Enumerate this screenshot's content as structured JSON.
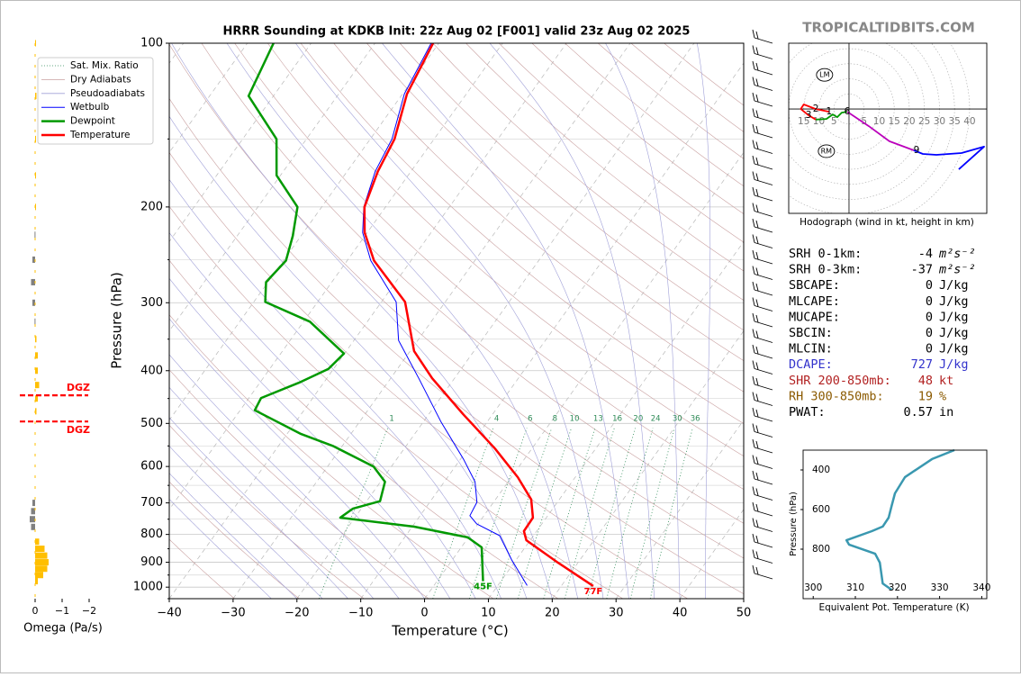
{
  "header": {
    "brand": "TROPICALTIDBITS.COM"
  },
  "chart_data": [
    {
      "type": "skewt",
      "title": "HRRR Sounding at KDKB Init: 22z Aug 02 [F001] valid 23z Aug 02 2025",
      "x_label": "Temperature (°C)",
      "y_label": "Pressure (hPa)",
      "xlim": [
        -40,
        50
      ],
      "ylim": [
        1050,
        100
      ],
      "log_y": true,
      "xticks": [
        {
          "value": -40,
          "label": "−40"
        },
        {
          "value": -30,
          "label": "−30"
        },
        {
          "value": -20,
          "label": "−20"
        },
        {
          "value": -10,
          "label": "−10"
        },
        0,
        10,
        20,
        30,
        40,
        50
      ],
      "yticks": [
        100,
        200,
        300,
        400,
        500,
        600,
        700,
        800,
        900,
        1000
      ],
      "minor_yticks": [
        150,
        250,
        350,
        450,
        550,
        650,
        750,
        850,
        950,
        1050
      ],
      "mixing_ratio_labels": [
        1,
        4,
        6,
        8,
        10,
        13,
        16,
        20,
        24,
        30,
        36
      ],
      "reference_lines": [
        {
          "name": "Sat. Mix. Ratio",
          "color": "#2e8b57",
          "style": "dotted"
        },
        {
          "name": "Dry Adiabats",
          "color": "#c9a0a0",
          "style": "solid"
        },
        {
          "name": "Pseudoadiabats",
          "color": "#a0a0d8",
          "style": "solid"
        }
      ],
      "series": [
        {
          "name": "Wetbulb",
          "color": "#0000ff",
          "width": 1,
          "pressure": [
            993,
            891,
            804,
            765,
            739,
            698,
            640,
            582,
            496,
            413,
            352,
            299,
            251,
            223,
            200,
            172,
            150,
            124,
            100
          ],
          "values": [
            14.6,
            9.3,
            4.7,
            -0.2,
            -2.2,
            -2.6,
            -5.2,
            -9.5,
            -17.3,
            -25.6,
            -33,
            -37.7,
            -46.3,
            -50.7,
            -53.4,
            -55.6,
            -56.6,
            -59.7,
            -61.2
          ]
        },
        {
          "name": "Dewpoint",
          "color": "#009900",
          "width": 2.5,
          "surface_label": "45F",
          "pressure": [
            975,
            845,
            810,
            774,
            745,
            717,
            695,
            640,
            600,
            550,
            523,
            473,
            449,
            421,
            397,
            372,
            325,
            299,
            275,
            251,
            226,
            200,
            175,
            150,
            125,
            100
          ],
          "values": [
            7.2,
            3.2,
            -0.1,
            -9.7,
            -22.3,
            -21.3,
            -17.9,
            -19.3,
            -22.8,
            -31.5,
            -37.8,
            -47.7,
            -48.1,
            -43.9,
            -40.8,
            -40.1,
            -49.0,
            -58.2,
            -60.3,
            -59.6,
            -61.3,
            -63.8,
            -70.6,
            -74.7,
            -83.9,
            -85.9
          ]
        },
        {
          "name": "Temperature",
          "color": "#ff0000",
          "width": 2.5,
          "surface_label": "77F",
          "pressure": [
            995,
            902,
            820,
            789,
            745,
            690,
            628,
            556,
            481,
            413,
            368,
            299,
            251,
            223,
            200,
            172,
            150,
            124,
            100
          ],
          "values": [
            25,
            16.9,
            9.4,
            8.0,
            7.9,
            5.6,
            1.0,
            -5.8,
            -14.6,
            -23.5,
            -29.4,
            -36.3,
            -45.8,
            -50.4,
            -53.3,
            -55.2,
            -56.2,
            -59.3,
            -60.9
          ]
        }
      ]
    },
    {
      "type": "omega",
      "x_label": "Omega (Pa/s)",
      "xlim": [
        0.5,
        -2.1
      ],
      "ylim": [
        1050,
        100
      ],
      "xticks": [
        0,
        {
          "value": -1,
          "label": "−1"
        },
        {
          "value": -2,
          "label": "−2"
        }
      ],
      "color_negative": "#ffbf00",
      "color_positive": "#808080",
      "pressure": [
        975,
        950,
        925,
        900,
        875,
        850,
        825,
        775,
        750,
        725,
        700,
        475,
        450,
        425,
        400,
        375,
        350,
        325,
        300,
        275,
        250,
        225,
        200,
        175,
        150,
        125,
        100
      ],
      "values": [
        -0.1,
        -0.3,
        -0.45,
        -0.5,
        -0.45,
        -0.35,
        -0.15,
        0.15,
        0.2,
        0.15,
        0.1,
        -0.05,
        -0.1,
        -0.15,
        -0.1,
        -0.1,
        -0.05,
        0.02,
        0.1,
        0.15,
        0.1,
        0.02,
        -0.03,
        -0.03,
        -0.03,
        -0.05,
        -0.02
      ],
      "dgz": {
        "pressures": [
          444,
          496
        ],
        "labels": [
          "DGZ",
          "DGZ"
        ],
        "color": "#ff0000"
      }
    },
    {
      "type": "hodograph",
      "caption": "Hodograph (wind in kt, height in km)",
      "xlim": [
        -20,
        45.7
      ],
      "ylim": [
        -34.6,
        21.8
      ],
      "xticks": [
        {
          "value": -15,
          "label": "15"
        },
        {
          "value": -10,
          "label": "10"
        },
        {
          "value": -5,
          "label": "5"
        },
        5,
        10,
        15,
        20,
        25,
        30,
        35,
        40
      ],
      "segments": [
        {
          "color": "#ff0000",
          "u": [
            -6.6,
            -11,
            -15,
            -16,
            -13.4,
            -11
          ],
          "v": [
            -0.9,
            0,
            1.5,
            0,
            -2.1,
            -3.5
          ]
        },
        {
          "color": "#009900",
          "u": [
            -11,
            -7.5,
            -5.4,
            -3.9,
            -2.4,
            -0.6
          ],
          "v": [
            -3.5,
            -3.3,
            -1.8,
            -2.7,
            -1.2,
            -0.9
          ]
        },
        {
          "color": "#bb00bb",
          "u": [
            -0.6,
            6.6,
            13.4,
            21.5
          ],
          "v": [
            -0.9,
            -5.7,
            -10.7,
            -13.7
          ]
        },
        {
          "color": "#0000ff",
          "u": [
            21.5,
            24.5,
            29,
            37.3,
            44.8,
            36.4
          ],
          "v": [
            -13.7,
            -14.9,
            -15.2,
            -14.6,
            -12.5,
            -20
          ]
        }
      ],
      "height_markers": [
        {
          "height": 1,
          "u": -6.6,
          "v": -0.9
        },
        {
          "height": 2,
          "u": -11,
          "v": 0
        },
        {
          "height": 3,
          "u": -13.4,
          "v": -2.1
        },
        {
          "height": 6,
          "u": -0.6,
          "v": -0.9
        },
        {
          "height": 9,
          "u": 22.4,
          "v": -13.7
        }
      ],
      "storm_motion": [
        {
          "label": "LM",
          "u": -8.1,
          "v": 11.3
        },
        {
          "label": "RM",
          "u": -7.5,
          "v": -14
        }
      ]
    },
    {
      "type": "line",
      "x_label": "Equivalent Pot. Temperature (K)",
      "y_label": "Pressure (hPa)",
      "xlim": [
        297.6,
        341.2
      ],
      "ylim": [
        1050,
        300
      ],
      "xticks": [
        300,
        310,
        320,
        330,
        340
      ],
      "yticks": [
        400,
        600,
        800
      ],
      "color": "#3a98b0",
      "pressure": [
        300,
        345,
        436,
        518,
        582,
        641,
        686,
        709,
        755,
        777,
        823,
        868,
        973,
        1005
      ],
      "values": [
        333.5,
        328.2,
        321.8,
        319.4,
        318.6,
        317.9,
        316.5,
        313.9,
        307.9,
        308.5,
        314.7,
        315.8,
        316.5,
        318.6
      ]
    }
  ],
  "parameters": [
    {
      "label": "SRH 0-1km:",
      "value": -4,
      "unit": "m²s⁻²"
    },
    {
      "label": "SRH 0-3km:",
      "value": -37,
      "unit": "m²s⁻²"
    },
    {
      "label": "SBCAPE:",
      "value": 0,
      "unit": "J/kg"
    },
    {
      "label": "MLCAPE:",
      "value": 0,
      "unit": "J/kg"
    },
    {
      "label": "MUCAPE:",
      "value": 0,
      "unit": "J/kg"
    },
    {
      "label": "SBCIN:",
      "value": 0,
      "unit": "J/kg"
    },
    {
      "label": "MLCIN:",
      "value": 0,
      "unit": "J/kg"
    },
    {
      "label": "DCAPE:",
      "value": 727,
      "unit": "J/kg",
      "color": "#3333cc"
    },
    {
      "label": "SHR 200-850mb:",
      "value": 48,
      "unit": "kt",
      "color": "#b22222"
    },
    {
      "label": "RH 300-850mb:",
      "value": 19,
      "unit": "%",
      "color": "#8b5a00"
    },
    {
      "label": "PWAT:",
      "value": 0.57,
      "unit": "in"
    }
  ]
}
